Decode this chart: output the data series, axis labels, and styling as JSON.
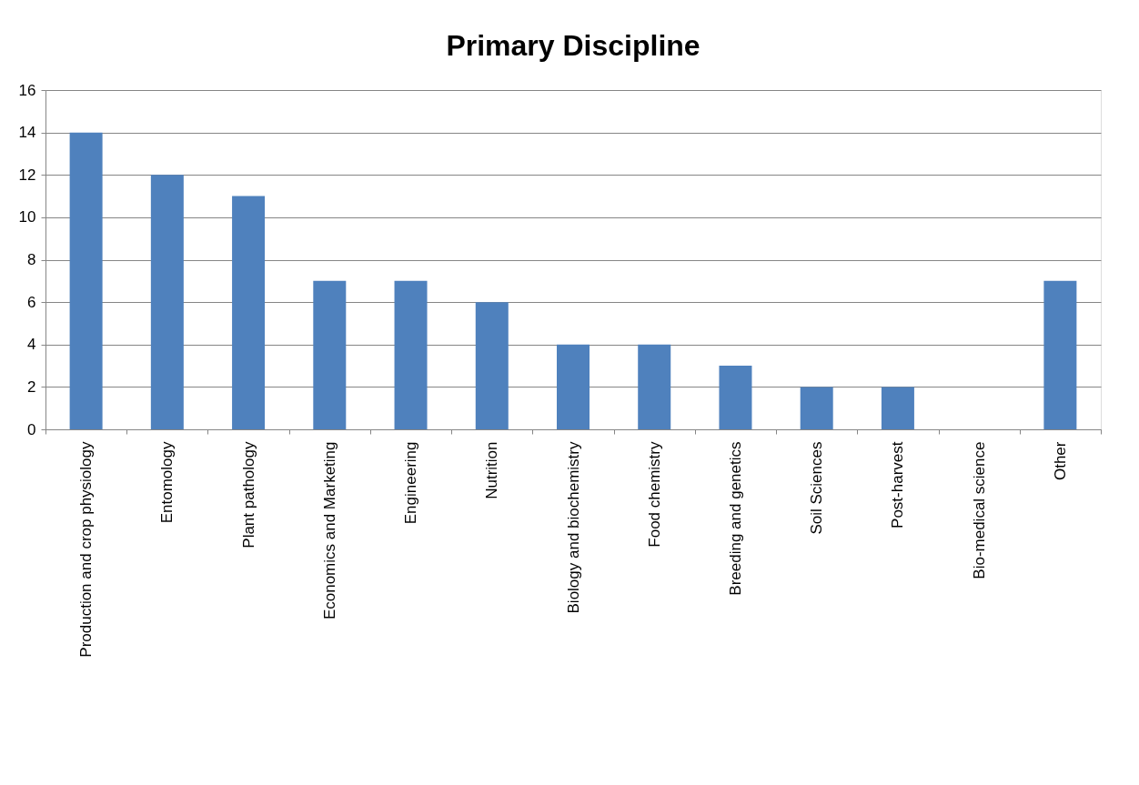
{
  "chart_data": {
    "type": "bar",
    "title": "Primary Discipline",
    "categories": [
      "Production and crop physiology",
      "Entomology",
      "Plant pathology",
      "Economics and Marketing",
      "Engineering",
      "Nutrition",
      "Biology and biochemistry",
      "Food chemistry",
      "Breeding and genetics",
      "Soil Sciences",
      "Post-harvest",
      "Bio-medical science",
      "Other"
    ],
    "values": [
      14,
      12,
      11,
      7,
      7,
      6,
      4,
      4,
      3,
      2,
      2,
      0,
      7
    ],
    "color": "#4f81bd",
    "ylim": [
      0,
      16
    ],
    "yticks": [
      0,
      2,
      4,
      6,
      8,
      10,
      12,
      14,
      16
    ],
    "grid": "y"
  }
}
